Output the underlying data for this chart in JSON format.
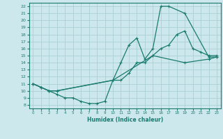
{
  "xlabel": "Humidex (Indice chaleur)",
  "xlim": [
    -0.5,
    23.5
  ],
  "ylim": [
    7.5,
    22.5
  ],
  "xticks": [
    0,
    1,
    2,
    3,
    4,
    5,
    6,
    7,
    8,
    9,
    10,
    11,
    12,
    13,
    14,
    15,
    16,
    17,
    18,
    19,
    20,
    21,
    22,
    23
  ],
  "yticks": [
    8,
    9,
    10,
    11,
    12,
    13,
    14,
    15,
    16,
    17,
    18,
    19,
    20,
    21,
    22
  ],
  "bg_color": "#cce8ec",
  "grid_color": "#aacfd4",
  "line_color": "#1a7a6e",
  "curve1_x": [
    0,
    1,
    2,
    3,
    10,
    11,
    12,
    13,
    14,
    15,
    16,
    17,
    19,
    22,
    23
  ],
  "curve1_y": [
    11,
    10.5,
    10,
    10,
    11.5,
    14,
    16.5,
    17.5,
    14.5,
    16,
    22,
    22,
    21,
    14.8,
    14.8
  ],
  "curve2_x": [
    0,
    1,
    2,
    3,
    4,
    5,
    6,
    7,
    8,
    9,
    10,
    11,
    12,
    13,
    14,
    15,
    16,
    17,
    18,
    19,
    20,
    21,
    22,
    23
  ],
  "curve2_y": [
    11,
    10.5,
    10,
    9.5,
    9.0,
    9.0,
    8.5,
    8.2,
    8.2,
    8.5,
    11.5,
    11.5,
    12.5,
    14,
    14,
    15,
    16,
    16.5,
    18,
    18.5,
    16,
    15.5,
    15,
    15
  ],
  "curve3_x": [
    0,
    1,
    2,
    3,
    10,
    15,
    19,
    22,
    23
  ],
  "curve3_y": [
    11,
    10.5,
    10,
    10,
    11.5,
    15,
    14,
    14.5,
    14.8
  ]
}
